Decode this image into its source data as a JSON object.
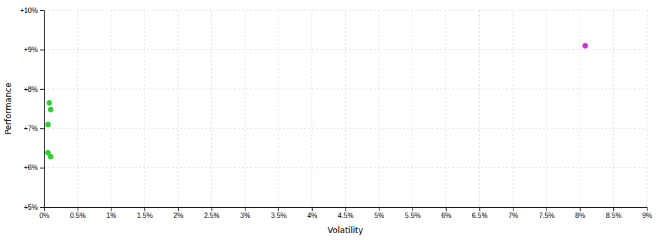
{
  "chart_data": {
    "type": "scatter",
    "xlabel": "Volatility",
    "ylabel": "Performance",
    "xlim": [
      0.0,
      0.09
    ],
    "ylim": [
      0.05,
      0.1
    ],
    "xticks": [
      {
        "value": 0.0,
        "label": "0%"
      },
      {
        "value": 0.005,
        "label": "0.5%"
      },
      {
        "value": 0.01,
        "label": "1%"
      },
      {
        "value": 0.015,
        "label": "1.5%"
      },
      {
        "value": 0.02,
        "label": "2%"
      },
      {
        "value": 0.025,
        "label": "2.5%"
      },
      {
        "value": 0.03,
        "label": "3%"
      },
      {
        "value": 0.035,
        "label": "3.5%"
      },
      {
        "value": 0.04,
        "label": "4%"
      },
      {
        "value": 0.045,
        "label": "4.5%"
      },
      {
        "value": 0.05,
        "label": "5%"
      },
      {
        "value": 0.055,
        "label": "5.5%"
      },
      {
        "value": 0.06,
        "label": "6%"
      },
      {
        "value": 0.065,
        "label": "6.5%"
      },
      {
        "value": 0.07,
        "label": "7%"
      },
      {
        "value": 0.075,
        "label": "7.5%"
      },
      {
        "value": 0.08,
        "label": "8%"
      },
      {
        "value": 0.085,
        "label": "8.5%"
      },
      {
        "value": 0.09,
        "label": "9%"
      }
    ],
    "yticks": [
      {
        "value": 0.05,
        "label": "+5%"
      },
      {
        "value": 0.06,
        "label": "+6%"
      },
      {
        "value": 0.07,
        "label": "+7%"
      },
      {
        "value": 0.08,
        "label": "+8%"
      },
      {
        "value": 0.09,
        "label": "+9%"
      },
      {
        "value": 0.1,
        "label": "+10%"
      }
    ],
    "grid": true,
    "series": [
      {
        "color": "#33cc33",
        "x": [
          0.0008,
          0.001,
          0.0006,
          0.0006,
          0.001
        ],
        "values": [
          0.0765,
          0.0748,
          0.071,
          0.0638,
          0.0628
        ]
      },
      {
        "color": "#cc33cc",
        "x": [
          0.0808
        ],
        "values": [
          0.091
        ]
      }
    ]
  }
}
